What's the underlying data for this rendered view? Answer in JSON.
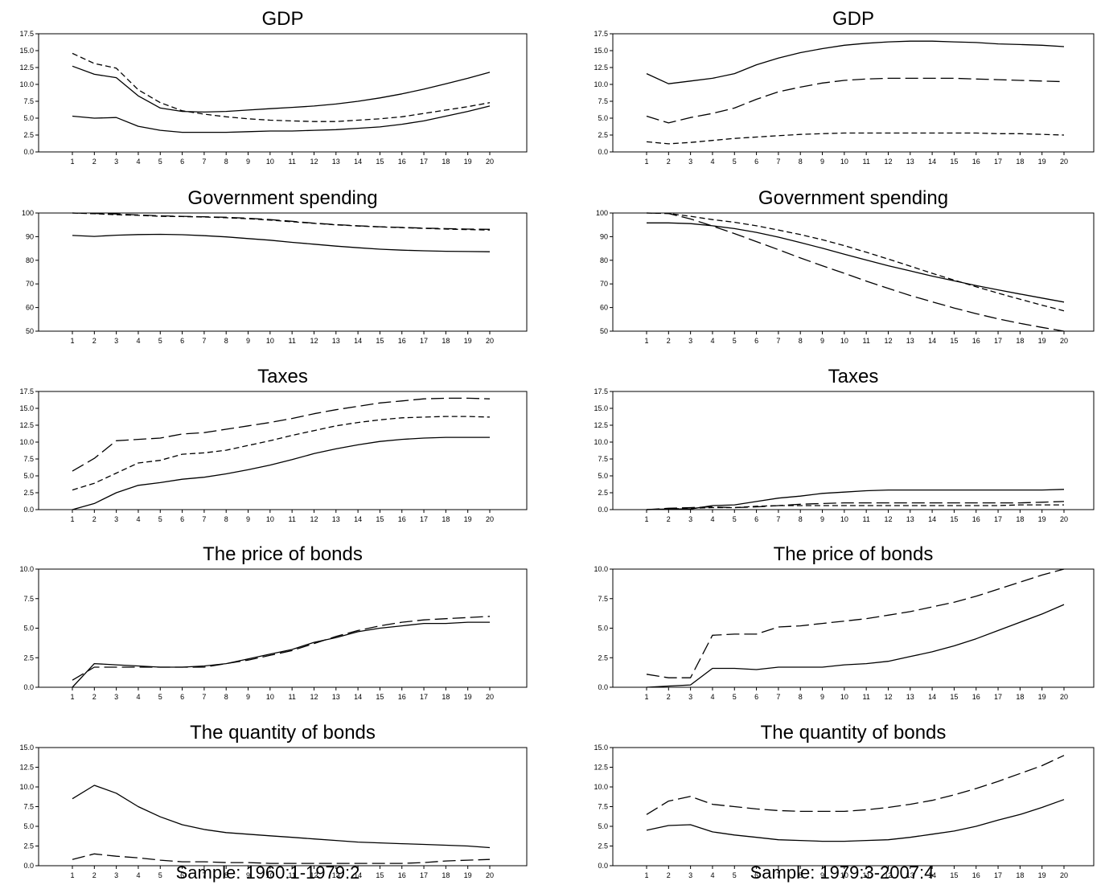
{
  "chart_data": [
    {
      "type": "line",
      "column": 0,
      "title": "GDP",
      "ylim": [
        0,
        17.5
      ],
      "yticks": [
        "0.0",
        "2.5",
        "5.0",
        "7.5",
        "10.0",
        "12.5",
        "15.0",
        "17.5"
      ],
      "x": [
        1,
        2,
        3,
        4,
        5,
        6,
        7,
        8,
        9,
        10,
        11,
        12,
        13,
        14,
        15,
        16,
        17,
        18,
        19,
        20
      ],
      "series": [
        {
          "style": "solid",
          "values": [
            12.7,
            11.5,
            11.0,
            8.3,
            6.5,
            6.0,
            5.9,
            6.0,
            6.2,
            6.4,
            6.6,
            6.8,
            7.1,
            7.5,
            8.0,
            8.6,
            9.3,
            10.1,
            10.9,
            11.8
          ]
        },
        {
          "style": "short-dash",
          "values": [
            14.6,
            13.1,
            12.4,
            9.2,
            7.3,
            6.1,
            5.6,
            5.2,
            4.9,
            4.7,
            4.6,
            4.5,
            4.5,
            4.7,
            4.9,
            5.2,
            5.7,
            6.2,
            6.7,
            7.3
          ]
        },
        {
          "style": "solid",
          "values": [
            5.3,
            5.0,
            5.1,
            3.8,
            3.2,
            2.9,
            2.9,
            2.9,
            3.0,
            3.1,
            3.1,
            3.2,
            3.3,
            3.5,
            3.7,
            4.1,
            4.6,
            5.3,
            6.0,
            6.8
          ]
        }
      ]
    },
    {
      "type": "line",
      "column": 1,
      "title": "GDP",
      "ylim": [
        0,
        17.5
      ],
      "yticks": [
        "0.0",
        "2.5",
        "5.0",
        "7.5",
        "10.0",
        "12.5",
        "15.0",
        "17.5"
      ],
      "x": [
        1,
        2,
        3,
        4,
        5,
        6,
        7,
        8,
        9,
        10,
        11,
        12,
        13,
        14,
        15,
        16,
        17,
        18,
        19,
        20
      ],
      "series": [
        {
          "style": "solid",
          "values": [
            11.6,
            10.1,
            10.5,
            10.9,
            11.6,
            12.9,
            13.9,
            14.7,
            15.3,
            15.8,
            16.1,
            16.3,
            16.4,
            16.4,
            16.3,
            16.2,
            16.0,
            15.9,
            15.8,
            15.6
          ]
        },
        {
          "style": "long-dash",
          "values": [
            5.3,
            4.3,
            5.1,
            5.7,
            6.5,
            7.8,
            8.9,
            9.6,
            10.2,
            10.6,
            10.8,
            10.9,
            10.9,
            10.9,
            10.9,
            10.8,
            10.7,
            10.6,
            10.5,
            10.4
          ]
        },
        {
          "style": "short-dash",
          "values": [
            1.5,
            1.2,
            1.4,
            1.7,
            2.0,
            2.2,
            2.4,
            2.6,
            2.7,
            2.8,
            2.8,
            2.8,
            2.8,
            2.8,
            2.8,
            2.8,
            2.7,
            2.7,
            2.6,
            2.5
          ]
        }
      ]
    },
    {
      "type": "line",
      "column": 0,
      "title": "Government spending",
      "ylim": [
        50,
        100
      ],
      "yticks": [
        "50",
        "60",
        "70",
        "80",
        "90",
        "100"
      ],
      "x": [
        1,
        2,
        3,
        4,
        5,
        6,
        7,
        8,
        9,
        10,
        11,
        12,
        13,
        14,
        15,
        16,
        17,
        18,
        19,
        20
      ],
      "series": [
        {
          "style": "long-dash",
          "values": [
            100.0,
            99.8,
            99.6,
            99.2,
            98.8,
            98.6,
            98.4,
            98.2,
            97.8,
            97.2,
            96.5,
            95.7,
            95.1,
            94.6,
            94.2,
            93.9,
            93.6,
            93.4,
            93.2,
            93.1
          ]
        },
        {
          "style": "short-dash",
          "values": [
            100.0,
            99.7,
            99.3,
            99.0,
            98.6,
            98.5,
            98.3,
            98.0,
            97.6,
            97.0,
            96.3,
            95.6,
            95.0,
            94.5,
            94.1,
            93.8,
            93.5,
            93.2,
            93.0,
            92.8
          ]
        },
        {
          "style": "solid",
          "values": [
            90.5,
            90.1,
            90.6,
            90.9,
            91.0,
            90.8,
            90.4,
            89.9,
            89.2,
            88.5,
            87.6,
            86.8,
            86.0,
            85.3,
            84.7,
            84.3,
            84.0,
            83.8,
            83.7,
            83.6
          ]
        }
      ]
    },
    {
      "type": "line",
      "column": 1,
      "title": "Government spending",
      "ylim": [
        50,
        100
      ],
      "yticks": [
        "50",
        "60",
        "70",
        "80",
        "90",
        "100"
      ],
      "x": [
        1,
        2,
        3,
        4,
        5,
        6,
        7,
        8,
        9,
        10,
        11,
        12,
        13,
        14,
        15,
        16,
        17,
        18,
        19,
        20
      ],
      "series": [
        {
          "style": "solid",
          "values": [
            95.8,
            95.8,
            95.5,
            94.6,
            93.4,
            91.8,
            89.8,
            87.5,
            85.1,
            82.6,
            80.1,
            77.7,
            75.5,
            73.3,
            71.3,
            69.3,
            67.5,
            65.7,
            64.0,
            62.3
          ]
        },
        {
          "style": "short-dash",
          "values": [
            100.0,
            99.8,
            98.6,
            97.2,
            96.1,
            94.6,
            92.8,
            90.9,
            88.7,
            86.2,
            83.4,
            80.5,
            77.5,
            74.5,
            71.6,
            68.8,
            66.1,
            63.5,
            61.0,
            58.6
          ]
        },
        {
          "style": "long-dash",
          "values": [
            100.0,
            99.8,
            97.5,
            94.5,
            91.3,
            87.9,
            84.5,
            81.0,
            77.7,
            74.5,
            71.2,
            68.1,
            65.1,
            62.4,
            59.8,
            57.4,
            55.2,
            53.3,
            51.6,
            50.0
          ]
        }
      ]
    },
    {
      "type": "line",
      "column": 0,
      "title": "Taxes",
      "ylim": [
        0,
        17.5
      ],
      "yticks": [
        "0.0",
        "2.5",
        "5.0",
        "7.5",
        "10.0",
        "12.5",
        "15.0",
        "17.5"
      ],
      "x": [
        1,
        2,
        3,
        4,
        5,
        6,
        7,
        8,
        9,
        10,
        11,
        12,
        13,
        14,
        15,
        16,
        17,
        18,
        19,
        20
      ],
      "series": [
        {
          "style": "long-dash",
          "values": [
            5.7,
            7.6,
            10.2,
            10.4,
            10.6,
            11.2,
            11.4,
            11.9,
            12.4,
            12.9,
            13.5,
            14.2,
            14.8,
            15.3,
            15.8,
            16.1,
            16.4,
            16.5,
            16.5,
            16.4
          ]
        },
        {
          "style": "short-dash",
          "values": [
            2.9,
            3.9,
            5.4,
            6.9,
            7.3,
            8.2,
            8.4,
            8.8,
            9.5,
            10.2,
            11.0,
            11.7,
            12.4,
            12.9,
            13.3,
            13.6,
            13.7,
            13.8,
            13.8,
            13.7
          ]
        },
        {
          "style": "solid",
          "values": [
            0.0,
            0.9,
            2.5,
            3.6,
            4.0,
            4.5,
            4.8,
            5.3,
            5.9,
            6.6,
            7.4,
            8.3,
            9.0,
            9.6,
            10.1,
            10.4,
            10.6,
            10.7,
            10.7,
            10.7
          ]
        }
      ]
    },
    {
      "type": "line",
      "column": 1,
      "title": "Taxes",
      "ylim": [
        0,
        17.5
      ],
      "yticks": [
        "0.0",
        "2.5",
        "5.0",
        "7.5",
        "10.0",
        "12.5",
        "15.0",
        "17.5"
      ],
      "x": [
        1,
        2,
        3,
        4,
        5,
        6,
        7,
        8,
        9,
        10,
        11,
        12,
        13,
        14,
        15,
        16,
        17,
        18,
        19,
        20
      ],
      "series": [
        {
          "style": "solid",
          "values": [
            0.0,
            0.1,
            0.1,
            0.6,
            0.7,
            1.2,
            1.7,
            2.0,
            2.4,
            2.6,
            2.8,
            2.9,
            2.9,
            2.9,
            2.9,
            2.9,
            2.9,
            2.9,
            2.9,
            3.0
          ]
        },
        {
          "style": "long-dash",
          "values": [
            0.0,
            0.2,
            0.3,
            0.4,
            0.3,
            0.4,
            0.6,
            0.8,
            0.9,
            1.0,
            1.0,
            1.0,
            1.0,
            1.0,
            1.0,
            1.0,
            1.0,
            1.0,
            1.1,
            1.2
          ]
        },
        {
          "style": "short-dash",
          "values": [
            0.0,
            0.1,
            0.2,
            0.3,
            0.3,
            0.5,
            0.6,
            0.6,
            0.6,
            0.6,
            0.6,
            0.6,
            0.6,
            0.6,
            0.6,
            0.6,
            0.6,
            0.7,
            0.7,
            0.7
          ]
        }
      ]
    },
    {
      "type": "line",
      "column": 0,
      "title": "The price of bonds",
      "ylim": [
        0,
        10
      ],
      "yticks": [
        "0.0",
        "2.5",
        "5.0",
        "7.5",
        "10.0"
      ],
      "x": [
        1,
        2,
        3,
        4,
        5,
        6,
        7,
        8,
        9,
        10,
        11,
        12,
        13,
        14,
        15,
        16,
        17,
        18,
        19,
        20
      ],
      "series": [
        {
          "style": "long-dash",
          "values": [
            0.6,
            1.7,
            1.7,
            1.7,
            1.7,
            1.7,
            1.7,
            2.0,
            2.3,
            2.7,
            3.1,
            3.7,
            4.3,
            4.8,
            5.2,
            5.5,
            5.7,
            5.8,
            5.9,
            6.0
          ]
        },
        {
          "style": "solid",
          "values": [
            0.0,
            2.0,
            1.9,
            1.8,
            1.7,
            1.7,
            1.8,
            2.0,
            2.4,
            2.8,
            3.2,
            3.8,
            4.2,
            4.7,
            5.0,
            5.2,
            5.4,
            5.4,
            5.5,
            5.5
          ]
        }
      ]
    },
    {
      "type": "line",
      "column": 1,
      "title": "The price of bonds",
      "ylim": [
        0,
        10
      ],
      "yticks": [
        "0.0",
        "2.5",
        "5.0",
        "7.5",
        "10.0"
      ],
      "x": [
        1,
        2,
        3,
        4,
        5,
        6,
        7,
        8,
        9,
        10,
        11,
        12,
        13,
        14,
        15,
        16,
        17,
        18,
        19,
        20
      ],
      "series": [
        {
          "style": "long-dash",
          "values": [
            1.1,
            0.8,
            0.8,
            4.4,
            4.5,
            4.5,
            5.1,
            5.2,
            5.4,
            5.6,
            5.8,
            6.1,
            6.4,
            6.8,
            7.2,
            7.7,
            8.3,
            8.9,
            9.5,
            10.0
          ]
        },
        {
          "style": "solid",
          "values": [
            0.0,
            0.1,
            0.2,
            1.6,
            1.6,
            1.5,
            1.7,
            1.7,
            1.7,
            1.9,
            2.0,
            2.2,
            2.6,
            3.0,
            3.5,
            4.1,
            4.8,
            5.5,
            6.2,
            7.0
          ]
        }
      ]
    },
    {
      "type": "line",
      "column": 0,
      "title": "The quantity of bonds",
      "ylim": [
        0,
        15
      ],
      "yticks": [
        "0.0",
        "2.5",
        "5.0",
        "7.5",
        "10.0",
        "12.5",
        "15.0"
      ],
      "x": [
        1,
        2,
        3,
        4,
        5,
        6,
        7,
        8,
        9,
        10,
        11,
        12,
        13,
        14,
        15,
        16,
        17,
        18,
        19,
        20
      ],
      "series": [
        {
          "style": "solid",
          "values": [
            8.5,
            10.2,
            9.2,
            7.5,
            6.2,
            5.2,
            4.6,
            4.2,
            4.0,
            3.8,
            3.6,
            3.4,
            3.2,
            3.0,
            2.9,
            2.8,
            2.7,
            2.6,
            2.5,
            2.3
          ]
        },
        {
          "style": "long-dash",
          "values": [
            0.8,
            1.5,
            1.2,
            1.0,
            0.7,
            0.5,
            0.5,
            0.4,
            0.4,
            0.3,
            0.3,
            0.3,
            0.3,
            0.3,
            0.3,
            0.3,
            0.4,
            0.6,
            0.7,
            0.8
          ]
        }
      ]
    },
    {
      "type": "line",
      "column": 1,
      "title": "The quantity of bonds",
      "ylim": [
        0,
        15
      ],
      "yticks": [
        "0.0",
        "2.5",
        "5.0",
        "7.5",
        "10.0",
        "12.5",
        "15.0"
      ],
      "x": [
        1,
        2,
        3,
        4,
        5,
        6,
        7,
        8,
        9,
        10,
        11,
        12,
        13,
        14,
        15,
        16,
        17,
        18,
        19,
        20
      ],
      "series": [
        {
          "style": "long-dash",
          "values": [
            6.5,
            8.2,
            8.8,
            7.8,
            7.5,
            7.2,
            7.0,
            6.9,
            6.9,
            6.9,
            7.1,
            7.4,
            7.8,
            8.3,
            9.0,
            9.8,
            10.7,
            11.7,
            12.7,
            14.0
          ]
        },
        {
          "style": "solid",
          "values": [
            4.5,
            5.1,
            5.2,
            4.3,
            3.9,
            3.6,
            3.3,
            3.2,
            3.1,
            3.1,
            3.2,
            3.3,
            3.6,
            4.0,
            4.4,
            5.0,
            5.8,
            6.5,
            7.4,
            8.4
          ]
        }
      ]
    }
  ],
  "footer": {
    "left": "Sample: 1960:1-1979:2",
    "right": "Sample: 1979:3-2007:4"
  }
}
